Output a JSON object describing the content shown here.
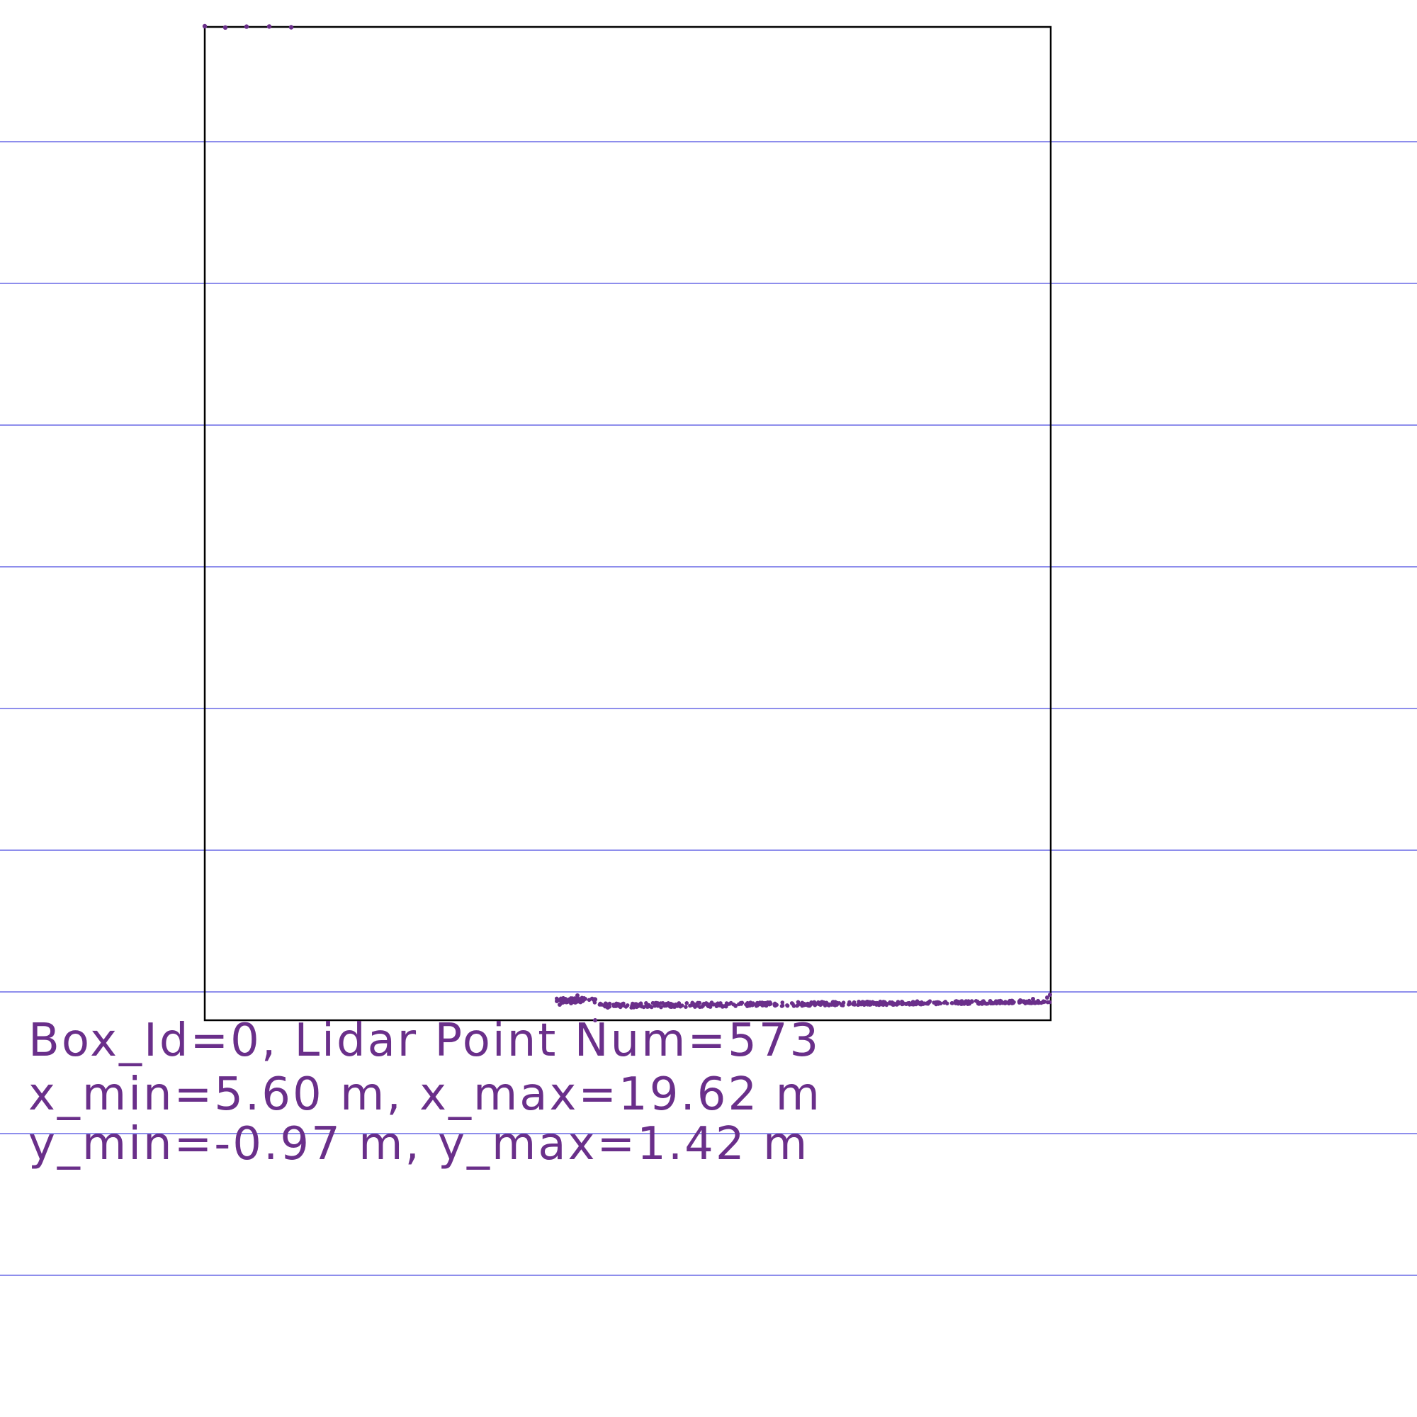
{
  "labels": {
    "line1": "Box_Id=0, Lidar Point Num=573",
    "line2": "x_min=5.60 m, x_max=19.62 m",
    "line3": "y_min=-0.97 m, y_max=1.42 m"
  },
  "colors": {
    "background": "#ffffff",
    "grid_line": "#4a4ae0",
    "box_outline": "#000000",
    "points": "#6a2f8a",
    "text": "#6a2f8a"
  },
  "box": {
    "box_id": 0,
    "lidar_point_num": 573,
    "x_min_m": 5.6,
    "x_max_m": 19.62,
    "y_min_m": -0.97,
    "y_max_m": 1.42
  }
}
